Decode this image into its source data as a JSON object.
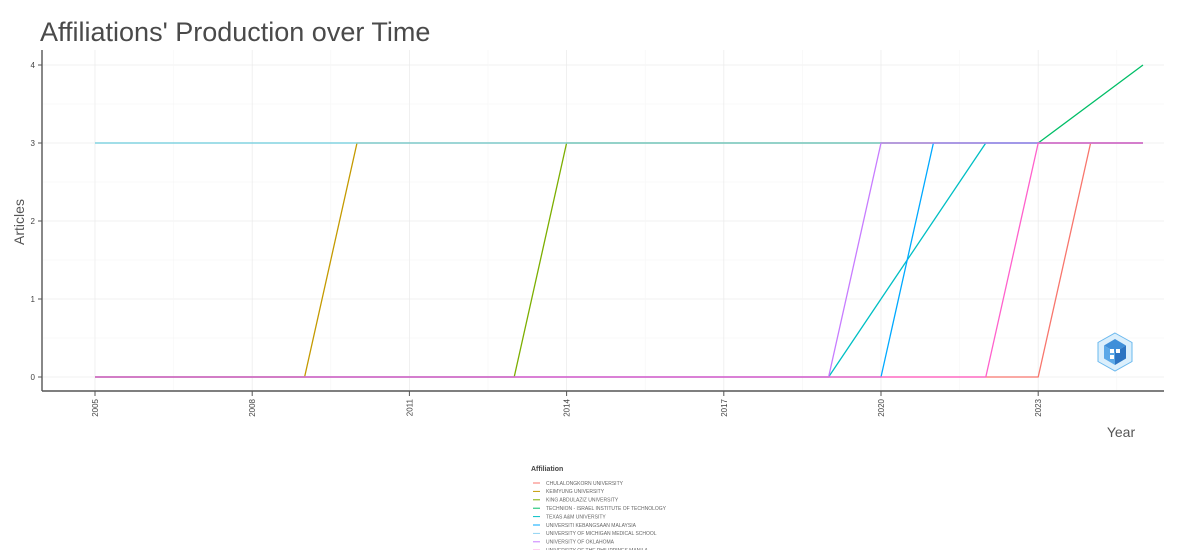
{
  "chart_data": {
    "type": "line",
    "title": "Affiliations' Production over Time",
    "xlabel": "Year",
    "ylabel": "Articles",
    "xlim": [
      2005,
      2025
    ],
    "ylim": [
      0,
      4
    ],
    "x_ticks": [
      "2005",
      "2008",
      "2011",
      "2014",
      "2017",
      "2020",
      "2023"
    ],
    "y_ticks": [
      "0",
      "1",
      "2",
      "3",
      "4"
    ],
    "grid": true,
    "legend_position": "bottom",
    "legend_title": "Affiliation",
    "series": [
      {
        "name": "CHULALONGKORN UNIVERSITY",
        "color": "#f8766d",
        "points": [
          [
            2005,
            0
          ],
          [
            2023,
            0
          ],
          [
            2024,
            3
          ],
          [
            2025,
            3
          ]
        ]
      },
      {
        "name": "KEIMYUNG UNIVERSITY",
        "color": "#c49a00",
        "points": [
          [
            2005,
            0
          ],
          [
            2009,
            0
          ],
          [
            2010,
            3
          ],
          [
            2025,
            3
          ]
        ]
      },
      {
        "name": "KING ABDULAZIZ UNIVERSITY",
        "color": "#7cae00",
        "points": [
          [
            2005,
            0
          ],
          [
            2013,
            0
          ],
          [
            2014,
            3
          ],
          [
            2025,
            3
          ]
        ]
      },
      {
        "name": "TECHNION - ISRAEL INSTITUTE OF TECHNOLOGY",
        "color": "#00be67",
        "points": [
          [
            2005,
            3
          ],
          [
            2023,
            3
          ],
          [
            2025,
            4
          ]
        ]
      },
      {
        "name": "TEXAS A&M UNIVERSITY",
        "color": "#00bfc4",
        "points": [
          [
            2005,
            0
          ],
          [
            2019,
            0
          ],
          [
            2022,
            3
          ],
          [
            2025,
            3
          ]
        ]
      },
      {
        "name": "UNIVERSITI KEBANGSAAN MALAYSIA",
        "color": "#00a9ff",
        "points": [
          [
            2005,
            0
          ],
          [
            2020,
            0
          ],
          [
            2021,
            3
          ],
          [
            2025,
            3
          ]
        ]
      },
      {
        "name": "UNIVERSITY OF MICHIGAN MEDICAL SCHOOL",
        "color": "#8fd3f2",
        "points": [
          [
            2005,
            3
          ],
          [
            2025,
            3
          ]
        ]
      },
      {
        "name": "UNIVERSITY OF OKLAHOMA",
        "color": "#c77cff",
        "points": [
          [
            2005,
            0
          ],
          [
            2019,
            0
          ],
          [
            2020,
            3
          ],
          [
            2025,
            3
          ]
        ]
      },
      {
        "name": "UNIVERSITY OF THE PHILIPPINES MANILA",
        "color": "#ff61cc",
        "points": [
          [
            2005,
            0
          ],
          [
            2022,
            0
          ],
          [
            2023,
            3
          ],
          [
            2025,
            3
          ]
        ]
      }
    ]
  }
}
